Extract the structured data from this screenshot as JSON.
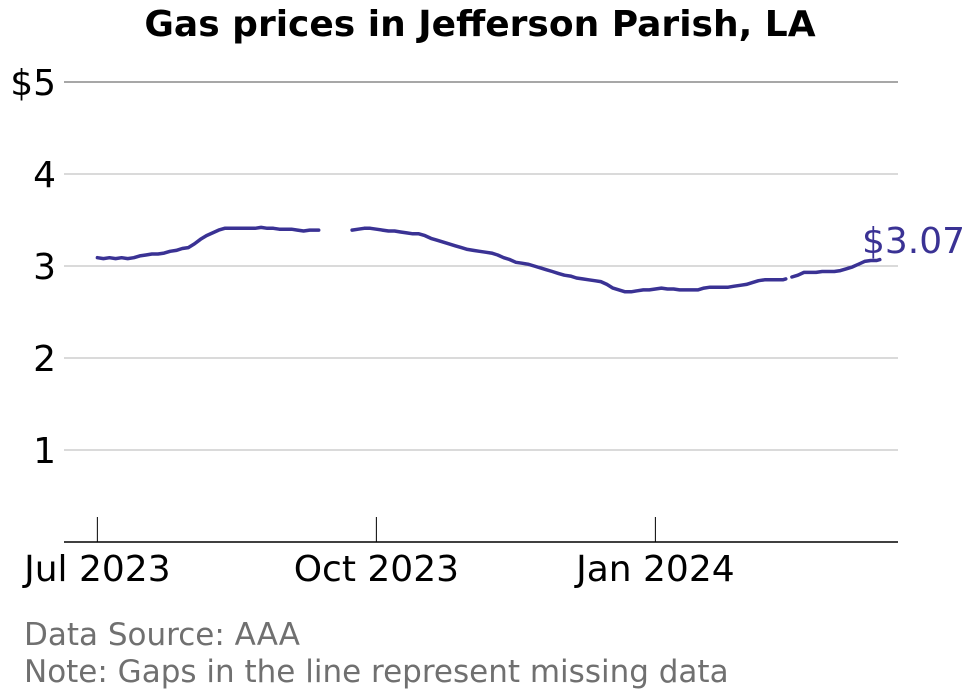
{
  "chart_data": {
    "type": "line",
    "title": "Gas prices in Jefferson Parish, LA",
    "xlabel": "",
    "ylabel": "",
    "x_range": [
      "2023-06-20",
      "2024-03-21"
    ],
    "ylim": [
      0,
      5
    ],
    "y_ticks": [
      1,
      2,
      3,
      4,
      5
    ],
    "y_tick_labels": [
      "1",
      "2",
      "3",
      "4",
      "$5"
    ],
    "x_ticks": [
      "2023-07-01",
      "2023-10-01",
      "2024-01-01"
    ],
    "x_tick_labels": [
      "Jul 2023",
      "Oct 2023",
      "Jan 2024"
    ],
    "grid": "horizontal",
    "end_label": "$3.07",
    "line_color": "#3a3294",
    "segments": [
      [
        [
          "2023-07-01",
          3.09
        ],
        [
          "2023-07-03",
          3.08
        ],
        [
          "2023-07-05",
          3.09
        ],
        [
          "2023-07-07",
          3.08
        ],
        [
          "2023-07-09",
          3.09
        ],
        [
          "2023-07-11",
          3.08
        ],
        [
          "2023-07-13",
          3.09
        ],
        [
          "2023-07-15",
          3.11
        ],
        [
          "2023-07-17",
          3.12
        ],
        [
          "2023-07-19",
          3.13
        ],
        [
          "2023-07-21",
          3.13
        ],
        [
          "2023-07-23",
          3.14
        ],
        [
          "2023-07-25",
          3.16
        ],
        [
          "2023-07-27",
          3.17
        ],
        [
          "2023-07-29",
          3.19
        ],
        [
          "2023-07-31",
          3.2
        ],
        [
          "2023-08-02",
          3.24
        ],
        [
          "2023-08-04",
          3.29
        ],
        [
          "2023-08-06",
          3.33
        ],
        [
          "2023-08-08",
          3.36
        ],
        [
          "2023-08-10",
          3.39
        ],
        [
          "2023-08-12",
          3.41
        ],
        [
          "2023-08-14",
          3.41
        ],
        [
          "2023-08-16",
          3.41
        ],
        [
          "2023-08-18",
          3.41
        ],
        [
          "2023-08-20",
          3.41
        ],
        [
          "2023-08-22",
          3.41
        ],
        [
          "2023-08-24",
          3.42
        ],
        [
          "2023-08-26",
          3.41
        ],
        [
          "2023-08-28",
          3.41
        ],
        [
          "2023-08-30",
          3.4
        ],
        [
          "2023-09-01",
          3.4
        ],
        [
          "2023-09-03",
          3.4
        ],
        [
          "2023-09-05",
          3.39
        ],
        [
          "2023-09-07",
          3.38
        ],
        [
          "2023-09-09",
          3.39
        ],
        [
          "2023-09-11",
          3.39
        ],
        [
          "2023-09-12",
          3.39
        ]
      ],
      [
        [
          "2023-09-23",
          3.39
        ],
        [
          "2023-09-25",
          3.4
        ],
        [
          "2023-09-27",
          3.41
        ],
        [
          "2023-09-29",
          3.41
        ],
        [
          "2023-10-01",
          3.4
        ],
        [
          "2023-10-03",
          3.39
        ],
        [
          "2023-10-05",
          3.38
        ],
        [
          "2023-10-07",
          3.38
        ],
        [
          "2023-10-09",
          3.37
        ],
        [
          "2023-10-11",
          3.36
        ],
        [
          "2023-10-13",
          3.35
        ],
        [
          "2023-10-15",
          3.35
        ],
        [
          "2023-10-17",
          3.33
        ],
        [
          "2023-10-19",
          3.3
        ],
        [
          "2023-10-21",
          3.28
        ],
        [
          "2023-10-23",
          3.26
        ],
        [
          "2023-10-25",
          3.24
        ],
        [
          "2023-10-27",
          3.22
        ],
        [
          "2023-10-29",
          3.2
        ],
        [
          "2023-10-31",
          3.18
        ],
        [
          "2023-11-02",
          3.17
        ],
        [
          "2023-11-04",
          3.16
        ],
        [
          "2023-11-06",
          3.15
        ],
        [
          "2023-11-08",
          3.14
        ],
        [
          "2023-11-10",
          3.12
        ],
        [
          "2023-11-12",
          3.09
        ],
        [
          "2023-11-14",
          3.07
        ],
        [
          "2023-11-16",
          3.04
        ],
        [
          "2023-11-18",
          3.03
        ],
        [
          "2023-11-20",
          3.02
        ],
        [
          "2023-11-22",
          3.0
        ],
        [
          "2023-11-24",
          2.98
        ],
        [
          "2023-11-26",
          2.96
        ],
        [
          "2023-11-28",
          2.94
        ],
        [
          "2023-11-30",
          2.92
        ],
        [
          "2023-12-02",
          2.9
        ],
        [
          "2023-12-04",
          2.89
        ],
        [
          "2023-12-06",
          2.87
        ],
        [
          "2023-12-08",
          2.86
        ],
        [
          "2023-12-10",
          2.85
        ],
        [
          "2023-12-12",
          2.84
        ],
        [
          "2023-12-14",
          2.83
        ],
        [
          "2023-12-16",
          2.8
        ],
        [
          "2023-12-18",
          2.76
        ],
        [
          "2023-12-20",
          2.74
        ],
        [
          "2023-12-22",
          2.72
        ],
        [
          "2023-12-24",
          2.72
        ],
        [
          "2023-12-26",
          2.73
        ],
        [
          "2023-12-28",
          2.74
        ],
        [
          "2023-12-30",
          2.74
        ],
        [
          "2024-01-01",
          2.75
        ],
        [
          "2024-01-03",
          2.76
        ],
        [
          "2024-01-05",
          2.75
        ],
        [
          "2024-01-07",
          2.75
        ],
        [
          "2024-01-09",
          2.74
        ],
        [
          "2024-01-11",
          2.74
        ],
        [
          "2024-01-13",
          2.74
        ],
        [
          "2024-01-15",
          2.74
        ],
        [
          "2024-01-17",
          2.76
        ],
        [
          "2024-01-19",
          2.77
        ],
        [
          "2024-01-21",
          2.77
        ],
        [
          "2024-01-23",
          2.77
        ],
        [
          "2024-01-25",
          2.77
        ],
        [
          "2024-01-27",
          2.78
        ],
        [
          "2024-01-29",
          2.79
        ],
        [
          "2024-01-31",
          2.8
        ],
        [
          "2024-02-02",
          2.82
        ],
        [
          "2024-02-04",
          2.84
        ],
        [
          "2024-02-06",
          2.85
        ],
        [
          "2024-02-08",
          2.85
        ],
        [
          "2024-02-10",
          2.85
        ],
        [
          "2024-02-12",
          2.85
        ],
        [
          "2024-02-13",
          2.86
        ]
      ],
      [
        [
          "2024-02-15",
          2.88
        ],
        [
          "2024-02-17",
          2.9
        ],
        [
          "2024-02-19",
          2.93
        ],
        [
          "2024-02-21",
          2.93
        ],
        [
          "2024-02-23",
          2.93
        ],
        [
          "2024-02-25",
          2.94
        ],
        [
          "2024-02-27",
          2.94
        ],
        [
          "2024-02-29",
          2.94
        ],
        [
          "2024-03-02",
          2.95
        ],
        [
          "2024-03-04",
          2.97
        ],
        [
          "2024-03-06",
          2.99
        ],
        [
          "2024-03-08",
          3.02
        ],
        [
          "2024-03-10",
          3.05
        ],
        [
          "2024-03-12",
          3.06
        ],
        [
          "2024-03-14",
          3.06
        ],
        [
          "2024-03-15",
          3.07
        ]
      ]
    ]
  },
  "footer": {
    "source": "Data Source: AAA",
    "note": "Note: Gaps in the line represent missing data"
  }
}
